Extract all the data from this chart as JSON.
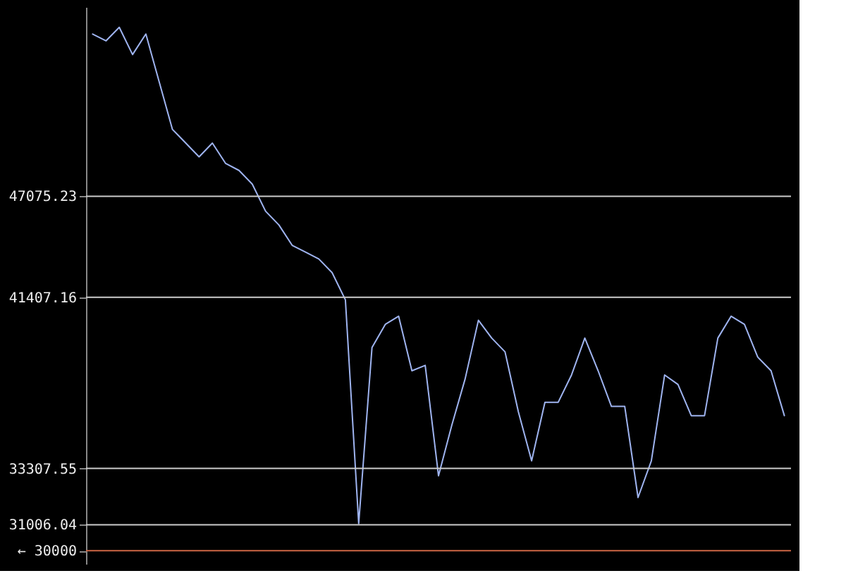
{
  "chart_data": {
    "type": "line",
    "log": true,
    "tick_labels": "y",
    "grid": false,
    "ylim": [
      29500,
      59880
    ],
    "yticks": [
      {
        "value": 30000,
        "label": "← 30000"
      },
      31006.04,
      33307.55,
      41407.16,
      47075.23
    ],
    "categories": [
      null,
      null,
      null,
      null,
      null,
      null,
      null,
      null,
      null,
      null,
      null,
      null,
      null,
      null,
      null,
      null,
      null,
      null,
      null,
      null,
      null,
      null,
      null,
      null,
      null,
      null,
      null,
      null,
      null,
      null,
      null,
      null,
      null,
      null,
      null,
      null,
      null,
      null,
      null,
      null,
      null,
      null,
      null,
      null,
      null,
      null,
      null,
      null,
      null,
      null,
      null,
      null,
      null
    ],
    "series": [
      {
        "color": "#9fb4f0",
        "values": [
          57860,
          57360,
          58360,
          56370,
          57860,
          54450,
          51250,
          50370,
          49500,
          50370,
          49080,
          48650,
          47810,
          46190,
          45390,
          44230,
          43850,
          43470,
          42720,
          41270,
          31050,
          38840,
          40000,
          40420,
          37710,
          37970,
          33000,
          35190,
          37320,
          40210,
          39310,
          38630,
          35800,
          33630,
          36230,
          36230,
          37510,
          39310,
          37710,
          36040,
          36040,
          32100,
          33630,
          37510,
          37060,
          35620,
          35620,
          39310,
          40420,
          40000,
          38370,
          37710,
          35620
        ]
      }
    ],
    "ref_lines": [
      {
        "axis": "y",
        "value": 47075.23,
        "color": "#cccccc"
      },
      {
        "axis": "y",
        "value": 41407.16,
        "color": "#cccccc"
      },
      {
        "axis": "y",
        "value": 33307.55,
        "color": "#cccccc"
      },
      {
        "axis": "y",
        "value": 31006.04,
        "color": "#cccccc"
      },
      {
        "axis": "y",
        "value": 30000,
        "color": "#cc6644"
      }
    ]
  }
}
